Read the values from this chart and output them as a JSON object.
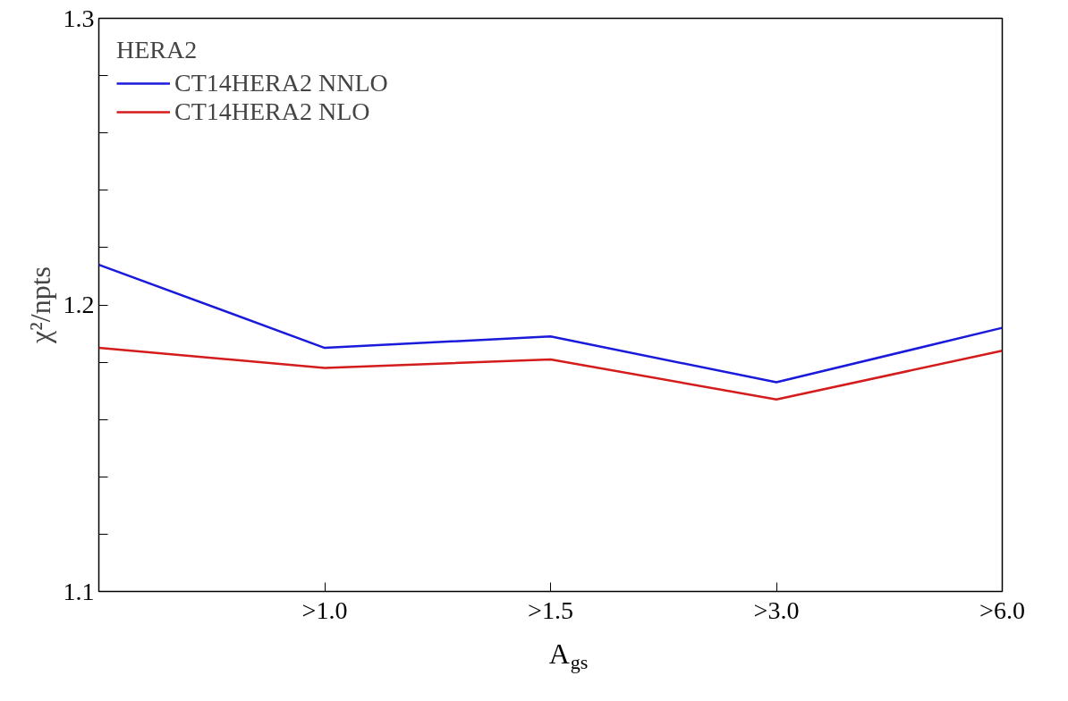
{
  "chart_data": {
    "type": "line",
    "categories": [
      null,
      ">1.0",
      ">1.5",
      ">3.0",
      ">6.0"
    ],
    "series": [
      {
        "name": "CT14HERA2 NNLO",
        "color": "#1a1adb",
        "values": [
          1.214,
          1.185,
          1.189,
          1.173,
          1.192
        ]
      },
      {
        "name": "CT14HERA2 NLO",
        "color": "#d41c1c",
        "values": [
          1.185,
          1.178,
          1.181,
          1.167,
          1.184
        ]
      }
    ],
    "ylim": [
      1.1,
      1.3
    ],
    "yticks": [
      1.1,
      {
        "value": 1.12,
        "label": null
      },
      {
        "value": 1.14,
        "label": null
      },
      {
        "value": 1.16,
        "label": null
      },
      {
        "value": 1.18,
        "label": null
      },
      1.2,
      {
        "value": 1.22,
        "label": null
      },
      {
        "value": 1.24,
        "label": null
      },
      {
        "value": 1.26,
        "label": null
      },
      {
        "value": 1.28,
        "label": null
      },
      1.3
    ],
    "xlabel": "A$_{gs}$",
    "ylabel": "χ²/npts",
    "legend_title": "HERA2",
    "legend": "top left",
    "grid": false,
    "marker": "none",
    "line_style": "solid"
  }
}
